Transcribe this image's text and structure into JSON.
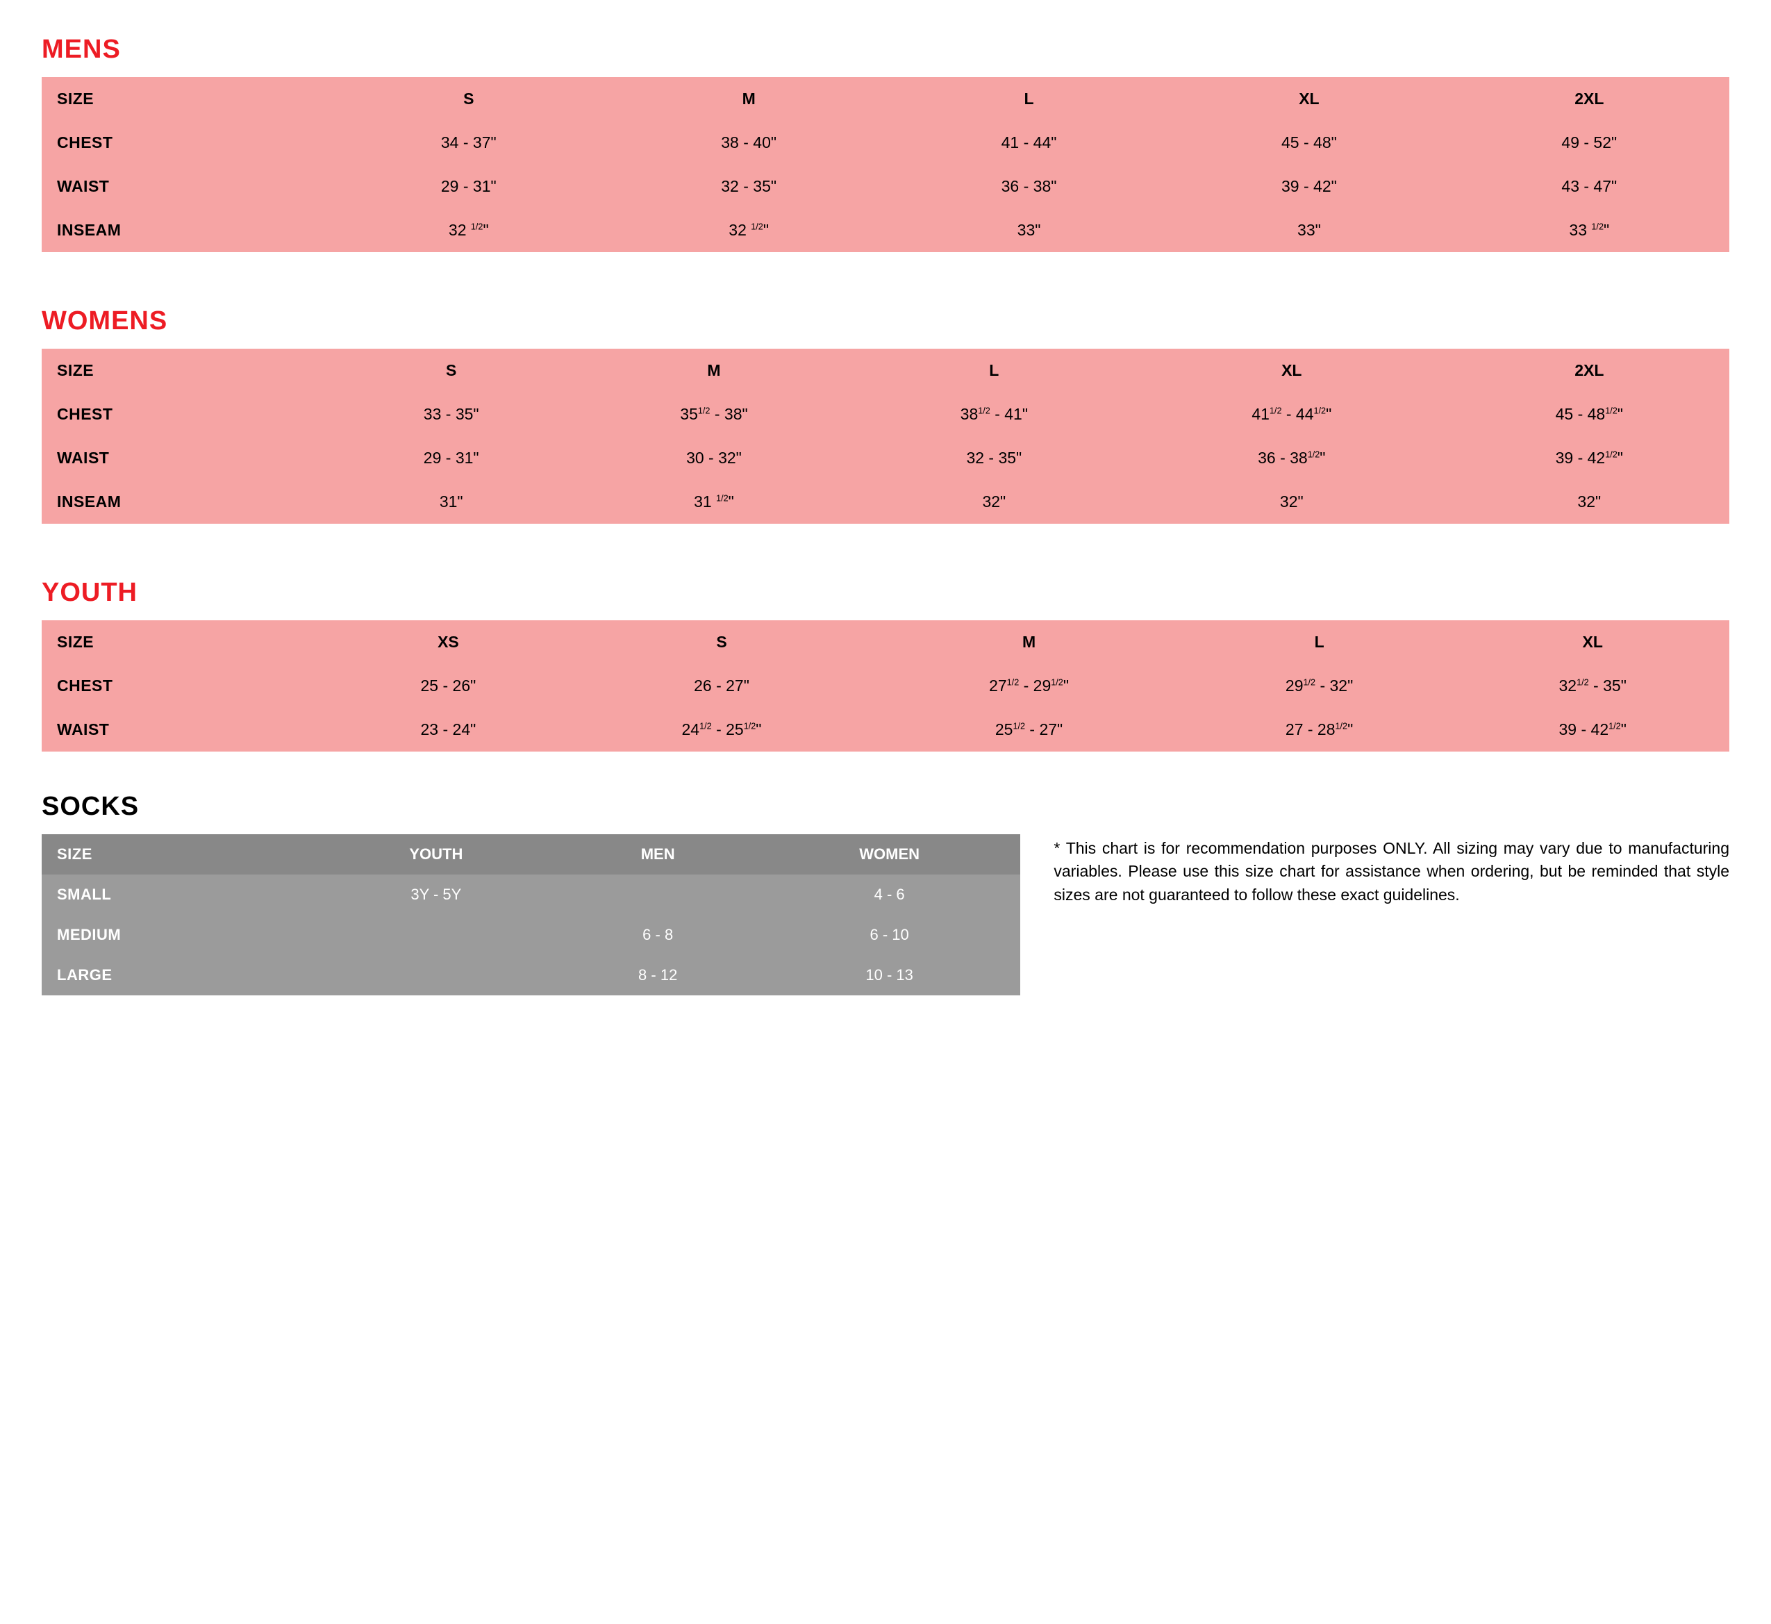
{
  "colors": {
    "accent_red": "#ed1c24",
    "pink_bg": "#f6a4a4",
    "gray_bg": "#9b9b9b",
    "gray_header": "#888888",
    "white": "#ffffff",
    "black": "#000000"
  },
  "mens": {
    "title": "MENS",
    "columns": [
      "SIZE",
      "S",
      "M",
      "L",
      "XL",
      "2XL"
    ],
    "rows": [
      {
        "label": "CHEST",
        "cells": [
          "34 - 37\"",
          "38 - 40\"",
          "41 - 44\"",
          "45 - 48\"",
          "49 - 52\""
        ]
      },
      {
        "label": "WAIST",
        "cells": [
          "29 - 31\"",
          "32 - 35\"",
          "36 - 38\"",
          "39 - 42\"",
          "43 - 47\""
        ]
      },
      {
        "label": "INSEAM",
        "cells": [
          "32 {1/2}\"",
          "32 {1/2}\"",
          "33\"",
          "33\"",
          "33 {1/2}\""
        ]
      }
    ]
  },
  "womens": {
    "title": "WOMENS",
    "columns": [
      "SIZE",
      "S",
      "M",
      "L",
      "XL",
      "2XL"
    ],
    "rows": [
      {
        "label": "CHEST",
        "cells": [
          "33 - 35\"",
          "35{1/2} - 38\"",
          "38{1/2} - 41\"",
          "41{1/2} - 44{1/2}\"",
          "45 - 48{1/2}\""
        ]
      },
      {
        "label": "WAIST",
        "cells": [
          "29 - 31\"",
          "30 - 32\"",
          "32 - 35\"",
          "36 - 38{1/2}\"",
          "39 - 42{1/2}\""
        ]
      },
      {
        "label": "INSEAM",
        "cells": [
          "31\"",
          "31 {1/2}\"",
          "32\"",
          "32\"",
          "32\""
        ]
      }
    ]
  },
  "youth": {
    "title": "YOUTH",
    "columns": [
      "SIZE",
      "XS",
      "S",
      "M",
      "L",
      "XL"
    ],
    "rows": [
      {
        "label": "CHEST",
        "cells": [
          "25 - 26\"",
          "26 - 27\"",
          "27{1/2} - 29{1/2}\"",
          "29{1/2} - 32\"",
          "32{1/2} - 35\""
        ]
      },
      {
        "label": "WAIST",
        "cells": [
          "23 - 24\"",
          "24{1/2} - 25{1/2}\"",
          "25{1/2} - 27\"",
          "27 - 28{1/2}\"",
          "39 - 42{1/2}\""
        ]
      }
    ]
  },
  "socks": {
    "title": "SOCKS",
    "columns": [
      "SIZE",
      "YOUTH",
      "MEN",
      "WOMEN"
    ],
    "rows": [
      {
        "label": "SMALL",
        "cells": [
          "3Y - 5Y",
          "",
          "4 - 6"
        ]
      },
      {
        "label": "MEDIUM",
        "cells": [
          "",
          "6 - 8",
          "6 - 10"
        ]
      },
      {
        "label": "LARGE",
        "cells": [
          "",
          "8 - 12",
          "10 - 13"
        ]
      }
    ]
  },
  "disclaimer": "This chart is for recommendation purposes ONLY. All sizing may vary due to manufacturing variables. Please use this size chart for assistance when ordering, but be reminded that style sizes are not guaranteed to follow these exact guidelines."
}
